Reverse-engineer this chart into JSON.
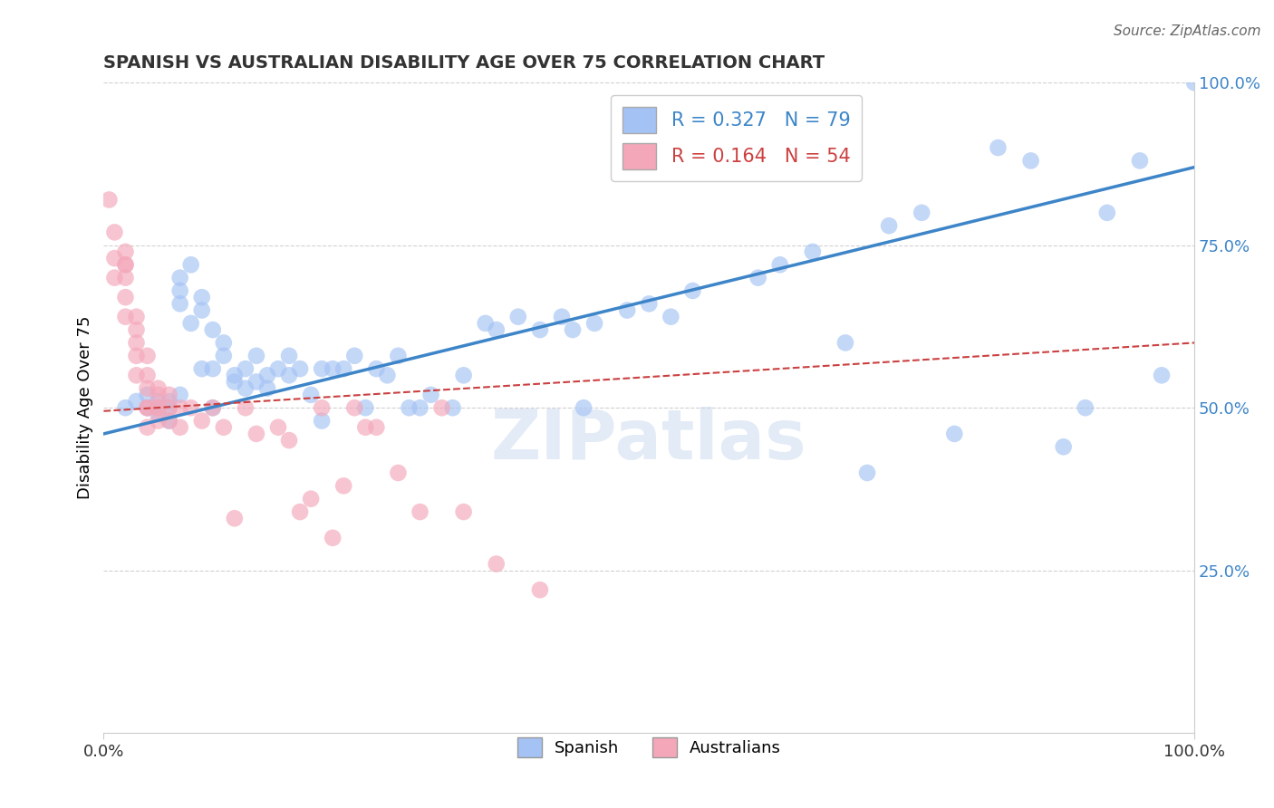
{
  "title": "SPANISH VS AUSTRALIAN DISABILITY AGE OVER 75 CORRELATION CHART",
  "source": "Source: ZipAtlas.com",
  "ylabel": "Disability Age Over 75",
  "xlim": [
    0.0,
    1.0
  ],
  "ylim": [
    0.0,
    1.0
  ],
  "yticks": [
    0.25,
    0.5,
    0.75,
    1.0
  ],
  "ytick_labels": [
    "25.0%",
    "50.0%",
    "75.0%",
    "100.0%"
  ],
  "xtick_labels": [
    "0.0%",
    "100.0%"
  ],
  "watermark": "ZIPatlas",
  "legend_spanish_R": "0.327",
  "legend_spanish_N": "79",
  "legend_australian_R": "0.164",
  "legend_australian_N": "54",
  "spanish_color": "#a4c2f4",
  "australian_color": "#f4a7b9",
  "spanish_line_color": "#3d85c8",
  "australian_line_color": "#cc4040",
  "grid_color": "#cccccc",
  "spanish_line_start_y": 0.46,
  "spanish_line_end_y": 0.87,
  "australian_line_start_y": 0.495,
  "australian_line_end_y": 0.6,
  "spanish_x": [
    0.02,
    0.03,
    0.04,
    0.04,
    0.05,
    0.05,
    0.05,
    0.06,
    0.06,
    0.06,
    0.07,
    0.07,
    0.07,
    0.07,
    0.08,
    0.08,
    0.09,
    0.09,
    0.09,
    0.1,
    0.1,
    0.1,
    0.11,
    0.11,
    0.12,
    0.12,
    0.13,
    0.13,
    0.14,
    0.14,
    0.15,
    0.15,
    0.16,
    0.17,
    0.17,
    0.18,
    0.19,
    0.2,
    0.2,
    0.21,
    0.22,
    0.23,
    0.24,
    0.25,
    0.26,
    0.27,
    0.28,
    0.29,
    0.3,
    0.32,
    0.33,
    0.35,
    0.36,
    0.38,
    0.4,
    0.42,
    0.43,
    0.44,
    0.45,
    0.48,
    0.5,
    0.52,
    0.54,
    0.6,
    0.62,
    0.65,
    0.68,
    0.7,
    0.72,
    0.75,
    0.78,
    0.82,
    0.85,
    0.88,
    0.9,
    0.92,
    0.95,
    0.97,
    1.0
  ],
  "spanish_y": [
    0.5,
    0.51,
    0.5,
    0.52,
    0.49,
    0.5,
    0.51,
    0.48,
    0.5,
    0.51,
    0.7,
    0.68,
    0.66,
    0.52,
    0.72,
    0.63,
    0.65,
    0.67,
    0.56,
    0.62,
    0.56,
    0.5,
    0.6,
    0.58,
    0.55,
    0.54,
    0.53,
    0.56,
    0.54,
    0.58,
    0.55,
    0.53,
    0.56,
    0.55,
    0.58,
    0.56,
    0.52,
    0.48,
    0.56,
    0.56,
    0.56,
    0.58,
    0.5,
    0.56,
    0.55,
    0.58,
    0.5,
    0.5,
    0.52,
    0.5,
    0.55,
    0.63,
    0.62,
    0.64,
    0.62,
    0.64,
    0.62,
    0.5,
    0.63,
    0.65,
    0.66,
    0.64,
    0.68,
    0.7,
    0.72,
    0.74,
    0.6,
    0.4,
    0.78,
    0.8,
    0.46,
    0.9,
    0.88,
    0.44,
    0.5,
    0.8,
    0.88,
    0.55,
    1.0
  ],
  "australian_x": [
    0.005,
    0.01,
    0.01,
    0.01,
    0.02,
    0.02,
    0.02,
    0.02,
    0.02,
    0.02,
    0.03,
    0.03,
    0.03,
    0.03,
    0.03,
    0.04,
    0.04,
    0.04,
    0.04,
    0.04,
    0.04,
    0.05,
    0.05,
    0.05,
    0.05,
    0.05,
    0.06,
    0.06,
    0.06,
    0.07,
    0.07,
    0.08,
    0.09,
    0.1,
    0.11,
    0.12,
    0.13,
    0.14,
    0.16,
    0.17,
    0.18,
    0.19,
    0.2,
    0.21,
    0.22,
    0.23,
    0.24,
    0.25,
    0.27,
    0.29,
    0.31,
    0.33,
    0.36,
    0.4
  ],
  "australian_y": [
    0.82,
    0.77,
    0.73,
    0.7,
    0.72,
    0.74,
    0.72,
    0.7,
    0.67,
    0.64,
    0.62,
    0.64,
    0.6,
    0.58,
    0.55,
    0.58,
    0.55,
    0.53,
    0.5,
    0.5,
    0.47,
    0.53,
    0.5,
    0.52,
    0.5,
    0.48,
    0.52,
    0.5,
    0.48,
    0.5,
    0.47,
    0.5,
    0.48,
    0.5,
    0.47,
    0.33,
    0.5,
    0.46,
    0.47,
    0.45,
    0.34,
    0.36,
    0.5,
    0.3,
    0.38,
    0.5,
    0.47,
    0.47,
    0.4,
    0.34,
    0.5,
    0.34,
    0.26,
    0.22
  ]
}
